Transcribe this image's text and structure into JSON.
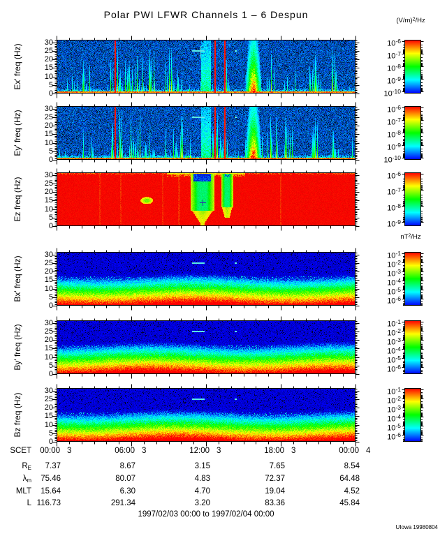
{
  "title": "Polar PWI LFWR Channels 1 – 6 Despun",
  "credit": "UIowa 19980804",
  "date_range": "1997/02/03 00:00 to 1997/02/04 00:00",
  "units": {
    "efield": {
      "main": "(V/m)",
      "sup": "2",
      "tail": "/Hz"
    },
    "bfield": {
      "main": "nT",
      "sup": "2",
      "tail": "/Hz"
    }
  },
  "xaxis": {
    "label": "SCET",
    "ticks": [
      {
        "time": "00:00",
        "day": "3"
      },
      {
        "time": "06:00",
        "day": "3"
      },
      {
        "time": "12:00",
        "day": "3"
      },
      {
        "time": "18:00",
        "day": "3"
      },
      {
        "time": "00:00",
        "day": "4"
      }
    ]
  },
  "table": {
    "rows": [
      {
        "id": "re",
        "label": "R",
        "sub": "E",
        "values": [
          "7.37",
          "8.67",
          "3.15",
          "7.65",
          "8.54"
        ]
      },
      {
        "id": "lm",
        "label": "λ",
        "sub": "m",
        "values": [
          "75.46",
          "80.07",
          "4.83",
          "72.37",
          "64.48"
        ]
      },
      {
        "id": "mlt",
        "label": "MLT",
        "sub": "",
        "values": [
          "15.64",
          "6.30",
          "4.70",
          "19.04",
          "4.52"
        ]
      },
      {
        "id": "l",
        "label": "L",
        "sub": "",
        "values": [
          "116.73",
          "291.34",
          "3.20",
          "83.36",
          "45.84"
        ]
      }
    ]
  },
  "chart_data": {
    "type": "heatmap",
    "subtype": "spectrogram_stack",
    "colormap": "rainbow-blue-to-red",
    "x_axis": {
      "label": "SCET",
      "start": "1997/02/03 00:00",
      "end": "1997/02/04 00:00",
      "major_ticks": [
        "00:00",
        "06:00",
        "12:00",
        "18:00",
        "00:00"
      ],
      "day_labels": [
        "3",
        "3",
        "3",
        "3",
        "4"
      ],
      "minor_tick_interval_hours": 1
    },
    "y_axis": {
      "label": "freq (Hz)",
      "min": 0,
      "max": 31.5,
      "ticks": [
        "30",
        "25",
        "20",
        "15",
        "10",
        "5",
        "0"
      ]
    },
    "panels": [
      {
        "key": "ex",
        "ylabel": "Ex' freq (Hz)",
        "units": "(V/m)2/Hz",
        "scale_labels": [
          {
            "base": "10",
            "exp": "-6"
          },
          {
            "base": "10",
            "exp": "-7"
          },
          {
            "base": "10",
            "exp": "-8"
          },
          {
            "base": "10",
            "exp": "-9"
          },
          {
            "base": "10",
            "exp": "-10"
          }
        ],
        "style": "electric-noisy",
        "seed": 11,
        "features": {
          "bottom_band_hz": 1.3,
          "red_lines": [
            0.196,
            0.53,
            0.563
          ],
          "dark_regions": [
            [
              0.425,
              0.474
            ],
            [
              0.601,
              0.631
            ]
          ],
          "wide_green_column": [
            0.484,
            0.517
          ],
          "orange_blob": [
            0.633,
            0.682
          ],
          "spike_clusters": [
            [
              0.07,
              0.125,
              0.3
            ],
            [
              0.18,
              0.222,
              0.65
            ],
            [
              0.228,
              0.33,
              0.45
            ],
            [
              0.355,
              0.45,
              0.4
            ],
            [
              0.52,
              0.578,
              0.55
            ],
            [
              0.7,
              0.8,
              0.18
            ],
            [
              0.853,
              0.873,
              0.8
            ],
            [
              0.92,
              0.945,
              0.55
            ]
          ],
          "cyan_dash": {
            "hz": 25,
            "x0": 0.453,
            "x1": 0.493,
            "cross": true
          },
          "cyan_dot": {
            "hz": 25,
            "x": 0.598
          }
        }
      },
      {
        "key": "ey",
        "ylabel": "Ey' freq (Hz)",
        "units": "(V/m)2/Hz",
        "scale_labels": [
          {
            "base": "10",
            "exp": "-6"
          },
          {
            "base": "10",
            "exp": "-7"
          },
          {
            "base": "10",
            "exp": "-8"
          },
          {
            "base": "10",
            "exp": "-9"
          },
          {
            "base": "10",
            "exp": "-10"
          }
        ],
        "style": "electric-noisy",
        "seed": 29,
        "features": {
          "bottom_band_hz": 1.3,
          "red_lines": [
            0.196,
            0.53,
            0.563
          ],
          "dark_regions": [
            [
              0.425,
              0.474
            ],
            [
              0.601,
              0.631
            ]
          ],
          "wide_green_column": [
            0.484,
            0.517
          ],
          "orange_blob": [
            0.633,
            0.682
          ],
          "spike_clusters": [
            [
              0.07,
              0.125,
              0.35
            ],
            [
              0.18,
              0.222,
              0.7
            ],
            [
              0.228,
              0.33,
              0.5
            ],
            [
              0.355,
              0.45,
              0.45
            ],
            [
              0.52,
              0.578,
              0.55
            ],
            [
              0.7,
              0.8,
              0.22
            ],
            [
              0.853,
              0.873,
              0.8
            ],
            [
              0.92,
              0.945,
              0.55
            ]
          ],
          "cyan_dash": {
            "hz": 25,
            "x0": 0.453,
            "x1": 0.493,
            "cross": false
          },
          "cyan_dot": {
            "hz": 25,
            "x": 0.598
          }
        }
      },
      {
        "key": "ez",
        "ylabel": "Ez freq (Hz)",
        "units": "(V/m)2/Hz",
        "scale_labels": [
          {
            "base": "10",
            "exp": "-6"
          },
          {
            "base": "10",
            "exp": "-7"
          },
          {
            "base": "10",
            "exp": "-8"
          },
          {
            "base": "10",
            "exp": "-9"
          }
        ],
        "style": "electric-saturated",
        "seed": 47,
        "features": {
          "green_columns": [
            {
              "x0": 0.449,
              "x1": 0.527,
              "body_bottom_hz": 9,
              "blue_cap": true,
              "tail_to_bottom": true
            },
            {
              "x0": 0.551,
              "x1": 0.59,
              "body_bottom_hz": 11,
              "blue_cap": false,
              "tail_to_bottom": false
            }
          ],
          "cross_marker": {
            "x": 0.4875,
            "hz": 14
          },
          "olive_blob": {
            "x": 0.302,
            "hz": 15
          },
          "top_fringe": [
            0.37,
            0.63
          ],
          "faint_streaks": [
            0.145,
            0.215,
            0.355,
            0.41,
            0.75
          ]
        }
      },
      {
        "key": "bx",
        "ylabel": "Bx' freq (Hz)",
        "units": "nT2/Hz",
        "scale_labels": [
          {
            "base": "10",
            "exp": "-1"
          },
          {
            "base": "10",
            "exp": "-2"
          },
          {
            "base": "10",
            "exp": "-3"
          },
          {
            "base": "10",
            "exp": "-4"
          },
          {
            "base": "10",
            "exp": "-5"
          },
          {
            "base": "10",
            "exp": "-6"
          }
        ],
        "style": "magnetic-gradient",
        "seed": 63,
        "features": {
          "cyan_dash": {
            "hz": 25,
            "x0": 0.453,
            "x1": 0.493
          },
          "cyan_dot": {
            "hz": 25,
            "x": 0.598
          }
        }
      },
      {
        "key": "by",
        "ylabel": "By' freq (Hz)",
        "units": "nT2/Hz",
        "scale_labels": [
          {
            "base": "10",
            "exp": "-1"
          },
          {
            "base": "10",
            "exp": "-2"
          },
          {
            "base": "10",
            "exp": "-3"
          },
          {
            "base": "10",
            "exp": "-4"
          },
          {
            "base": "10",
            "exp": "-5"
          },
          {
            "base": "10",
            "exp": "-6"
          }
        ],
        "style": "magnetic-gradient",
        "seed": 77,
        "features": {
          "cyan_dash": {
            "hz": 25,
            "x0": 0.453,
            "x1": 0.493
          },
          "cyan_dot": {
            "hz": 25,
            "x": 0.598
          }
        }
      },
      {
        "key": "bz",
        "ylabel": "Bz freq (Hz)",
        "units": "nT2/Hz",
        "scale_labels": [
          {
            "base": "10",
            "exp": "-1"
          },
          {
            "base": "10",
            "exp": "-2"
          },
          {
            "base": "10",
            "exp": "-3"
          },
          {
            "base": "10",
            "exp": "-4"
          },
          {
            "base": "10",
            "exp": "-5"
          },
          {
            "base": "10",
            "exp": "-6"
          }
        ],
        "style": "magnetic-gradient",
        "seed": 95,
        "features": {
          "cyan_dash": {
            "hz": 25,
            "x0": 0.453,
            "x1": 0.493
          },
          "cyan_dot": {
            "hz": 25,
            "x": 0.598
          }
        }
      }
    ]
  }
}
